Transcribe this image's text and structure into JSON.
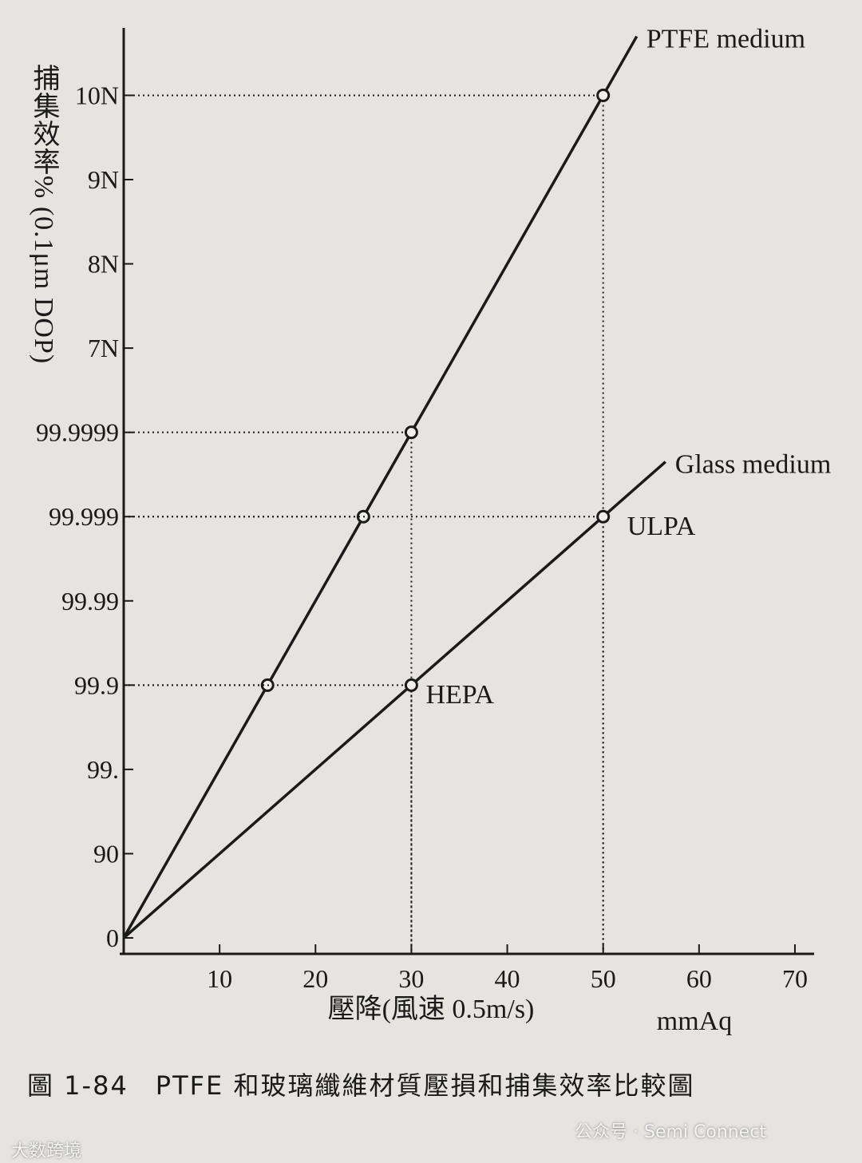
{
  "chart_data": {
    "type": "line",
    "y_label": "捕集效率% (0.1μm DOP)",
    "x_label": "壓降(風速 0.5m/s)",
    "x_unit": "mmAq",
    "caption": "圖 1-84　PTFE 和玻璃纖維材質壓損和捕集效率比較圖",
    "watermarks": [
      "大数跨境",
      "公众号 · Semi Connect"
    ],
    "xlim": [
      0,
      72
    ],
    "ylim": [
      0,
      10.8
    ],
    "xticks": [
      10,
      20,
      30,
      40,
      50,
      60,
      70
    ],
    "yticks": [
      {
        "value": 0,
        "label": "0"
      },
      {
        "value": 1,
        "label": "90"
      },
      {
        "value": 2,
        "label": "99."
      },
      {
        "value": 3,
        "label": "99.9"
      },
      {
        "value": 4,
        "label": "99.99"
      },
      {
        "value": 5,
        "label": "99.999"
      },
      {
        "value": 6,
        "label": "99.9999"
      },
      {
        "value": 7,
        "label": "7N"
      },
      {
        "value": 8,
        "label": "8N"
      },
      {
        "value": 9,
        "label": "9N"
      },
      {
        "value": 10,
        "label": "10N"
      }
    ],
    "series": [
      {
        "name": "PTFE medium",
        "color": "#1a1a1a",
        "x": [
          0,
          15,
          25,
          30,
          50,
          53.5
        ],
        "values": [
          0,
          3,
          5,
          6,
          10,
          10.7
        ]
      },
      {
        "name": "Glass medium",
        "color": "#1a1a1a",
        "x": [
          0,
          30,
          50,
          56.5
        ],
        "values": [
          0,
          3,
          5,
          5.65
        ]
      }
    ],
    "annotations": [
      {
        "text": "ULPA",
        "x": 52.5,
        "y": 4.9
      },
      {
        "text": "HEPA",
        "x": 31.5,
        "y": 2.9
      }
    ]
  }
}
